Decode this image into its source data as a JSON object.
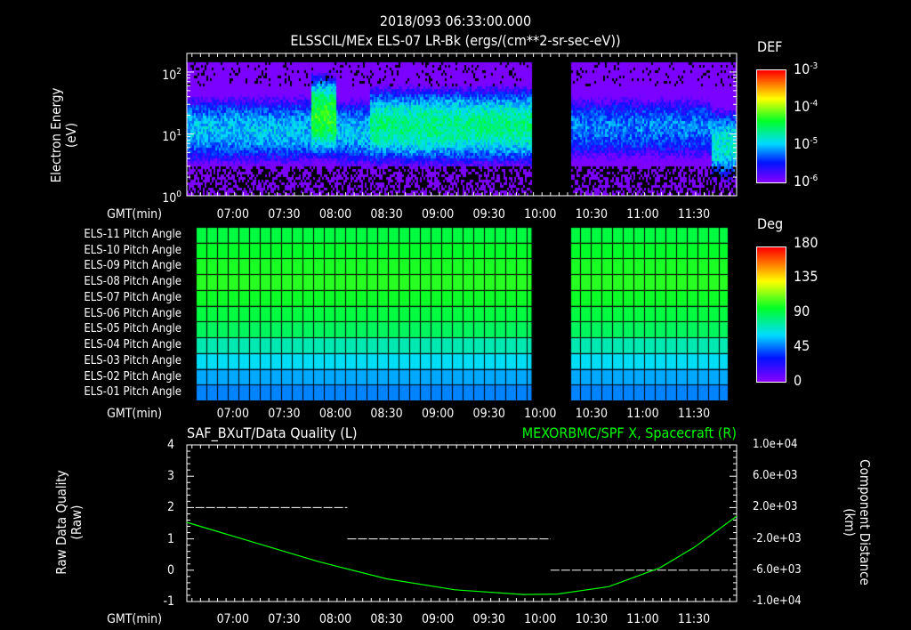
{
  "header": {
    "timestamp": "2018/093 06:33:00.000",
    "title": "ELSSCIL/MEx ELS-07 LR-Bk  (ergs/(cm**2-sr-sec-eV))"
  },
  "time_axis": {
    "label": "GMT(min)",
    "ticks": [
      "07:00",
      "07:30",
      "08:00",
      "08:30",
      "09:00",
      "09:30",
      "10:00",
      "10:30",
      "11:00",
      "11:30"
    ],
    "start_min": 393,
    "end_min": 715,
    "gap_min": [
      595,
      618
    ]
  },
  "chart_data": [
    {
      "type": "heatmap",
      "name": "spectrogram",
      "ylabel": "Electron Energy",
      "yunits": "(eV)",
      "yscale": "log",
      "ylim": [
        1,
        200
      ],
      "yticks": [
        {
          "base": "10",
          "exp": "0"
        },
        {
          "base": "10",
          "exp": "1"
        },
        {
          "base": "10",
          "exp": "2"
        }
      ],
      "colorbar": {
        "title": "DEF",
        "range": [
          1e-06,
          0.001
        ],
        "ticks": [
          {
            "base": "10",
            "exp": "-3"
          },
          {
            "base": "10",
            "exp": "-4"
          },
          {
            "base": "10",
            "exp": "-5"
          },
          {
            "base": "10",
            "exp": "-6"
          }
        ]
      },
      "band_segments": [
        {
          "t0": 393,
          "t1": 465,
          "peak_eV": 12,
          "log_def": -5.0
        },
        {
          "t0": 465,
          "t1": 480,
          "peak_eV": 20,
          "log_def": -4.3
        },
        {
          "t0": 480,
          "t1": 500,
          "peak_eV": 11,
          "log_def": -5.0
        },
        {
          "t0": 500,
          "t1": 595,
          "peak_eV": 14,
          "log_def": -4.6
        },
        {
          "t0": 618,
          "t1": 700,
          "peak_eV": 13,
          "log_def": -5.2
        },
        {
          "t0": 700,
          "t1": 715,
          "peak_eV": 7,
          "log_def": -4.8
        }
      ]
    },
    {
      "type": "heatmap",
      "name": "pitch-angle",
      "rows": [
        "ELS-11 Pitch Angle",
        "ELS-10 Pitch Angle",
        "ELS-09 Pitch Angle",
        "ELS-08 Pitch Angle",
        "ELS-07 Pitch Angle",
        "ELS-06 Pitch Angle",
        "ELS-05 Pitch Angle",
        "ELS-04 Pitch Angle",
        "ELS-03 Pitch Angle",
        "ELS-02 Pitch Angle",
        "ELS-01 Pitch Angle"
      ],
      "values_deg": [
        100,
        104,
        108,
        110,
        106,
        100,
        95,
        80,
        68,
        58,
        52
      ],
      "colorbar": {
        "title": "Deg",
        "range": [
          0,
          180
        ],
        "ticks": [
          "180",
          "135",
          "90",
          "45",
          "0"
        ]
      }
    },
    {
      "type": "line",
      "name": "quality-and-position",
      "left_title": "SAF_BXuT/Data Quality (L)",
      "right_title": "MEXORBMC/SPF X, Spacecraft (R)",
      "ylabel_left": "Raw Data Quality",
      "ylabel_left_units": "(Raw)",
      "ylabel_right": "Component Distance",
      "ylabel_right_units": "(km)",
      "ylim_left": [
        -1,
        4
      ],
      "yticks_left": [
        "4",
        "3",
        "2",
        "1",
        "0",
        "-1"
      ],
      "ylim_right": [
        -10000,
        10000
      ],
      "yticks_right": [
        "1.0e+04",
        "6.0e+03",
        "2.0e+03",
        "-2.0e+03",
        "-6.0e+03",
        "-1.0e+04"
      ],
      "quality_segments": [
        {
          "t0": 398,
          "t1": 487,
          "value": 2
        },
        {
          "t0": 487,
          "t1": 606,
          "value": 1
        },
        {
          "t0": 606,
          "t1": 710,
          "value": 0
        }
      ],
      "spacecraft_x_km": {
        "t": [
          393,
          430,
          470,
          510,
          550,
          590,
          610,
          640,
          670,
          690,
          715
        ],
        "v": [
          110,
          -2300,
          -4900,
          -7100,
          -8500,
          -9100,
          -9050,
          -8100,
          -5700,
          -3100,
          900
        ]
      },
      "colors": {
        "quality": "#ffffff",
        "position": "#00ff00"
      }
    }
  ]
}
